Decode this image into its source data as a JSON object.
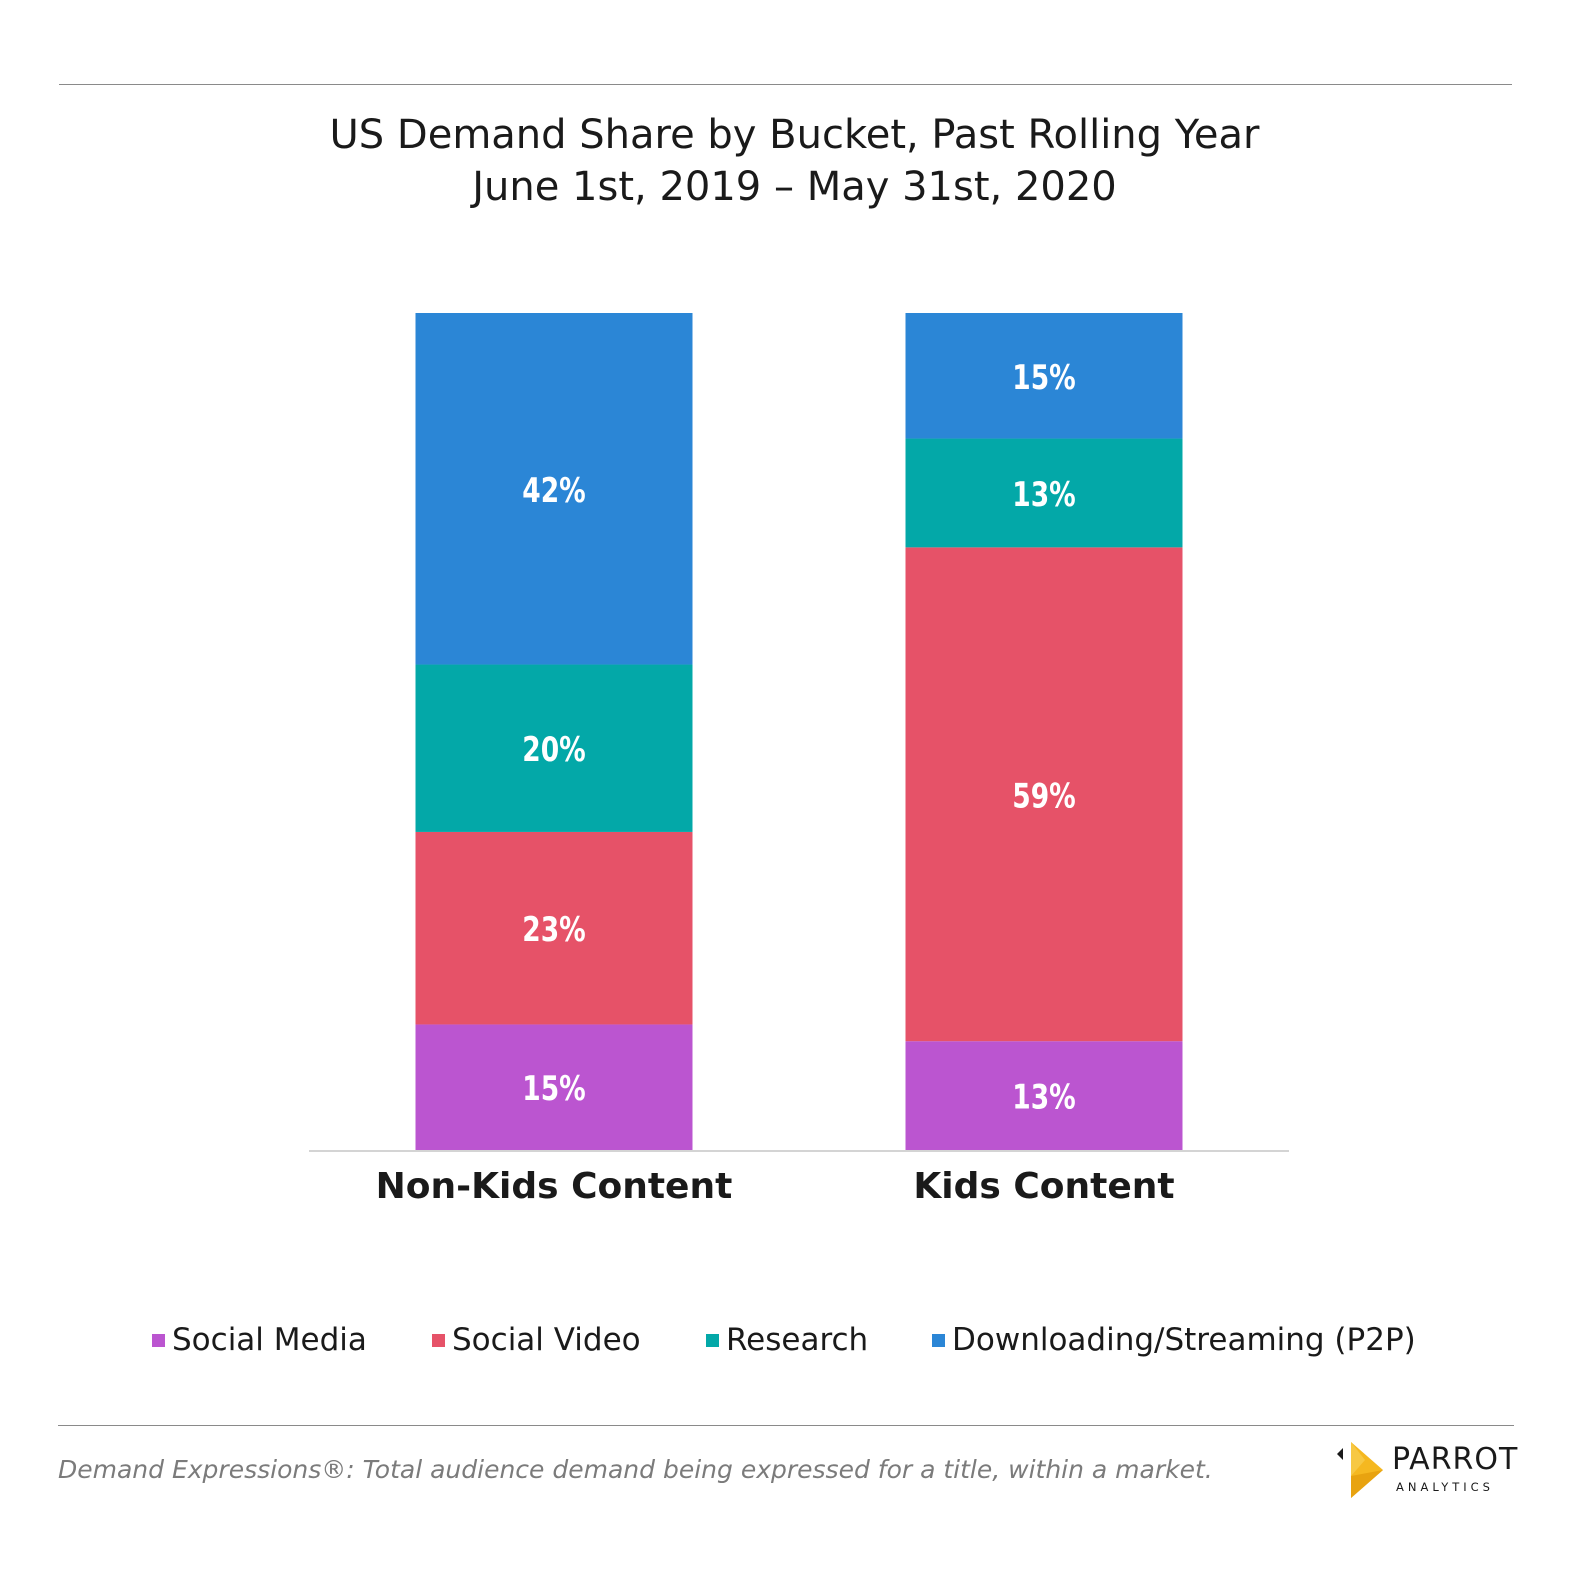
{
  "chart_data": {
    "type": "bar",
    "stacked": true,
    "title": "US Demand Share by Bucket, Past Rolling Year",
    "subtitle": "June 1st, 2019 – May 31st, 2020",
    "categories": [
      "Non-Kids Content",
      "Kids Content"
    ],
    "series": [
      {
        "name": "Social Media",
        "color": "#bb55d0",
        "values": [
          15,
          13
        ],
        "labels": [
          "15%",
          "13%"
        ]
      },
      {
        "name": "Social Video",
        "color": "#e65268",
        "values": [
          23,
          59
        ],
        "labels": [
          "23%",
          "59%"
        ]
      },
      {
        "name": "Research",
        "color": "#03a8a8",
        "values": [
          20,
          13
        ],
        "labels": [
          "20%",
          "13%"
        ]
      },
      {
        "name": "Downloading/Streaming (P2P)",
        "color": "#2b86d6",
        "values": [
          42,
          15
        ],
        "labels": [
          "42%",
          "15%"
        ]
      }
    ],
    "ylim": [
      0,
      100
    ],
    "grid": false,
    "legend_position": "bottom"
  },
  "footer": {
    "text": "Demand Expressions®:  Total audience demand being expressed for a title, within a market."
  },
  "logo": {
    "name": "PARROT",
    "sub": "ANALYTICS"
  }
}
